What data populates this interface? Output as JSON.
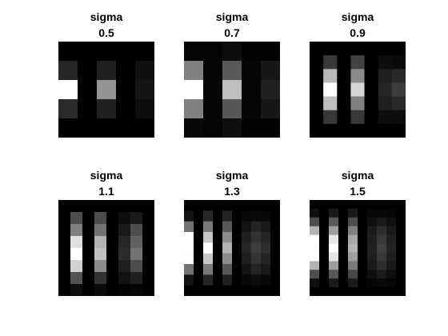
{
  "figure": {
    "background": "#ffffff",
    "colormap": "gray"
  },
  "chart_data": [
    {
      "type": "heatmap",
      "title_line1": "sigma",
      "title_line2": "0.5",
      "xticks": "none",
      "yticks": "none",
      "grid": false,
      "values": [
        [
          0.0,
          0.0,
          0.0,
          0.0,
          0.0
        ],
        [
          0.15,
          0.0,
          0.12,
          0.0,
          0.06
        ],
        [
          1.0,
          0.0,
          0.58,
          0.0,
          0.08
        ],
        [
          0.17,
          0.0,
          0.13,
          0.0,
          0.05
        ],
        [
          0.0,
          0.0,
          0.0,
          0.0,
          0.0
        ]
      ]
    },
    {
      "type": "heatmap",
      "title_line1": "sigma",
      "title_line2": "0.7",
      "xticks": "none",
      "yticks": "none",
      "grid": false,
      "values": [
        [
          0.02,
          0.02,
          0.05,
          0.01,
          0.01
        ],
        [
          0.5,
          0.02,
          0.35,
          0.02,
          0.09
        ],
        [
          1.0,
          0.02,
          0.75,
          0.02,
          0.13
        ],
        [
          0.5,
          0.02,
          0.34,
          0.02,
          0.09
        ],
        [
          0.03,
          0.02,
          0.06,
          0.01,
          0.01
        ]
      ]
    },
    {
      "type": "heatmap",
      "title_line1": "sigma",
      "title_line2": "0.9",
      "xticks": "none",
      "yticks": "none",
      "grid": false,
      "values": [
        [
          0.0,
          0.0,
          0.0,
          0.0,
          0.0,
          0.0,
          0.0
        ],
        [
          0.0,
          0.22,
          0.0,
          0.26,
          0.0,
          0.05,
          0.04
        ],
        [
          0.0,
          0.72,
          0.0,
          0.54,
          0.0,
          0.12,
          0.16
        ],
        [
          0.0,
          1.0,
          0.0,
          0.84,
          0.0,
          0.15,
          0.24
        ],
        [
          0.0,
          0.75,
          0.0,
          0.5,
          0.0,
          0.12,
          0.16
        ],
        [
          0.0,
          0.22,
          0.0,
          0.22,
          0.0,
          0.05,
          0.05
        ],
        [
          0.0,
          0.0,
          0.0,
          0.0,
          0.0,
          0.0,
          0.0
        ]
      ]
    },
    {
      "type": "heatmap",
      "title_line1": "sigma",
      "title_line2": "1.1",
      "xticks": "none",
      "yticks": "none",
      "grid": false,
      "values": [
        [
          0.0,
          0.0,
          0.0,
          0.0,
          0.0,
          0.0,
          0.0,
          0.0
        ],
        [
          0.0,
          0.3,
          0.0,
          0.3,
          0.0,
          0.05,
          0.1,
          0.0
        ],
        [
          0.0,
          0.5,
          0.0,
          0.45,
          0.0,
          0.1,
          0.3,
          0.0
        ],
        [
          0.0,
          0.88,
          0.0,
          0.7,
          0.0,
          0.15,
          0.38,
          0.0
        ],
        [
          0.0,
          1.0,
          0.0,
          0.75,
          0.0,
          0.17,
          0.45,
          0.0
        ],
        [
          0.0,
          0.82,
          0.0,
          0.55,
          0.0,
          0.12,
          0.3,
          0.0
        ],
        [
          0.0,
          0.32,
          0.0,
          0.2,
          0.0,
          0.07,
          0.12,
          0.0
        ],
        [
          0.0,
          0.05,
          0.0,
          0.04,
          0.0,
          0.01,
          0.02,
          0.0
        ]
      ]
    },
    {
      "type": "heatmap",
      "title_line1": "sigma",
      "title_line2": "1.3",
      "xticks": "none",
      "yticks": "none",
      "grid": false,
      "values": [
        [
          0.0,
          0.0,
          0.0,
          0.0,
          0.0,
          0.0,
          0.0,
          0.0,
          0.0,
          0.0
        ],
        [
          0.08,
          0.0,
          0.16,
          0.0,
          0.14,
          0.0,
          0.03,
          0.04,
          0.03,
          0.0
        ],
        [
          0.45,
          0.0,
          0.48,
          0.0,
          0.35,
          0.0,
          0.08,
          0.14,
          0.1,
          0.0
        ],
        [
          1.0,
          0.0,
          0.78,
          0.0,
          0.55,
          0.0,
          0.12,
          0.2,
          0.15,
          0.0
        ],
        [
          1.0,
          0.0,
          1.0,
          0.0,
          0.7,
          0.0,
          0.15,
          0.24,
          0.18,
          0.0
        ],
        [
          1.0,
          0.0,
          0.78,
          0.0,
          0.55,
          0.0,
          0.12,
          0.2,
          0.14,
          0.0
        ],
        [
          0.45,
          0.0,
          0.48,
          0.0,
          0.34,
          0.0,
          0.08,
          0.14,
          0.1,
          0.0
        ],
        [
          0.08,
          0.0,
          0.15,
          0.0,
          0.12,
          0.0,
          0.03,
          0.05,
          0.03,
          0.0
        ],
        [
          0.0,
          0.0,
          0.0,
          0.0,
          0.0,
          0.0,
          0.0,
          0.0,
          0.0,
          0.0
        ]
      ]
    },
    {
      "type": "heatmap",
      "title_line1": "sigma",
      "title_line2": "1.5",
      "xticks": "none",
      "yticks": "none",
      "grid": false,
      "values": [
        [
          0.0,
          0.0,
          0.0,
          0.0,
          0.0,
          0.0,
          0.0,
          0.0,
          0.0,
          0.0
        ],
        [
          0.06,
          0.0,
          0.1,
          0.0,
          0.1,
          0.0,
          0.02,
          0.03,
          0.02,
          0.0
        ],
        [
          0.3,
          0.0,
          0.35,
          0.0,
          0.3,
          0.0,
          0.06,
          0.1,
          0.06,
          0.0
        ],
        [
          0.7,
          0.0,
          0.62,
          0.0,
          0.5,
          0.0,
          0.1,
          0.18,
          0.1,
          0.0
        ],
        [
          1.0,
          0.0,
          0.9,
          0.0,
          0.65,
          0.0,
          0.12,
          0.22,
          0.12,
          0.0
        ],
        [
          1.0,
          0.0,
          1.0,
          0.0,
          0.7,
          0.0,
          0.13,
          0.25,
          0.14,
          0.0
        ],
        [
          1.0,
          0.0,
          0.9,
          0.0,
          0.62,
          0.0,
          0.12,
          0.22,
          0.12,
          0.0
        ],
        [
          0.7,
          0.0,
          0.62,
          0.0,
          0.48,
          0.0,
          0.1,
          0.18,
          0.1,
          0.0
        ],
        [
          0.3,
          0.0,
          0.34,
          0.0,
          0.28,
          0.0,
          0.06,
          0.1,
          0.06,
          0.0
        ],
        [
          0.06,
          0.0,
          0.1,
          0.0,
          0.1,
          0.0,
          0.02,
          0.03,
          0.02,
          0.0
        ],
        [
          0.0,
          0.0,
          0.0,
          0.0,
          0.0,
          0.0,
          0.0,
          0.0,
          0.0,
          0.0
        ]
      ]
    }
  ]
}
